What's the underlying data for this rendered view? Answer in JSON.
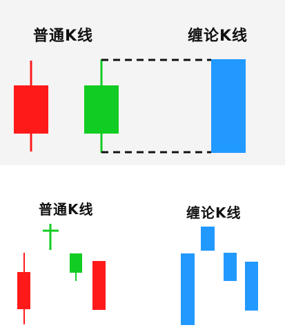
{
  "labels": {
    "normal_kline": "普通K线",
    "chan_kline": "缠论K线"
  },
  "colors": {
    "bearish_red": "#ff1a1a",
    "bullish_green": "#11cc22",
    "chan_blue": "#2299ff",
    "dashed_line": "#111111"
  }
}
